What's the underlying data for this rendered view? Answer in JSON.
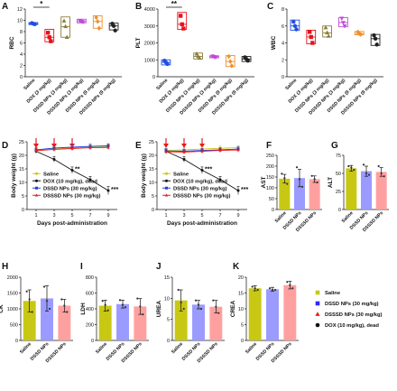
{
  "chart_data": [
    {
      "id": "A",
      "type": "box",
      "panel_label": "A",
      "ylabel": "RBC",
      "ylim": [
        0,
        12
      ],
      "yticks": [
        0,
        2,
        4,
        6,
        8,
        10,
        12
      ],
      "categories": [
        "Saline",
        "DOX (3 mg/kg)",
        "DSSD NPs (3 mg/kg)",
        "DSSSD NPs (3 mg/kg)",
        "DSSD NPs (9 mg/kg)",
        "DSSSD NPs (9 mg/kg)"
      ],
      "colors": [
        "#1f4fe0",
        "#e8111a",
        "#8b7d3a",
        "#c047d8",
        "#f0902a",
        "#222222"
      ],
      "markers": [
        "circle",
        "square",
        "triangle",
        "triangle-down",
        "diamond",
        "circle"
      ],
      "points": [
        [
          9.5,
          9.4,
          9.3
        ],
        [
          7.8,
          7.0,
          6.3
        ],
        [
          9.9,
          8.9,
          7.0
        ],
        [
          9.9,
          9.8,
          9.7
        ],
        [
          10.5,
          9.8,
          8.6
        ],
        [
          9.4,
          9.0,
          8.2
        ]
      ],
      "boxes": [
        [
          9.25,
          9.6
        ],
        [
          6.2,
          8.4
        ],
        [
          7.0,
          10.6
        ],
        [
          9.55,
          10.2
        ],
        [
          8.6,
          10.8
        ],
        [
          8.3,
          9.5
        ]
      ],
      "medians": [
        9.4,
        7.0,
        8.9,
        9.8,
        9.8,
        9.0
      ],
      "significance": [
        {
          "from": 0,
          "to": 1,
          "label": "*"
        }
      ]
    },
    {
      "id": "B",
      "type": "box",
      "panel_label": "B",
      "ylabel": "PLT",
      "ylim": [
        0,
        4000
      ],
      "yticks": [
        0,
        1000,
        2000,
        3000,
        4000
      ],
      "categories": [
        "Saline",
        "DOX (3 mg/kg)",
        "DSSD NPs (3 mg/kg)",
        "DSSSD NPs (3 mg/kg)",
        "DSSD NPs (9 mg/kg)",
        "DSSSD NPs (9 mg/kg)"
      ],
      "colors": [
        "#1f4fe0",
        "#e8111a",
        "#8b7d3a",
        "#c047d8",
        "#f0902a",
        "#222222"
      ],
      "markers": [
        "circle",
        "square",
        "triangle",
        "triangle-down",
        "diamond",
        "circle"
      ],
      "points": [
        [
          950,
          850,
          750
        ],
        [
          3600,
          3100,
          2850
        ],
        [
          1350,
          1200,
          1100
        ],
        [
          1220,
          1180,
          1150
        ],
        [
          1200,
          900,
          650
        ],
        [
          1150,
          1050,
          950
        ]
      ],
      "boxes": [
        [
          700,
          1000
        ],
        [
          2800,
          3800
        ],
        [
          1050,
          1400
        ],
        [
          1120,
          1240
        ],
        [
          600,
          1250
        ],
        [
          900,
          1200
        ]
      ],
      "medians": [
        850,
        3100,
        1200,
        1180,
        900,
        1050
      ],
      "significance": [
        {
          "from": 0,
          "to": 1,
          "label": "**"
        }
      ]
    },
    {
      "id": "C",
      "type": "box",
      "panel_label": "C",
      "ylabel": "WBC",
      "ylim": [
        0,
        8
      ],
      "yticks": [
        0,
        2,
        4,
        6,
        8
      ],
      "categories": [
        "Saline",
        "DOX (3 mg/kg)",
        "DSSD NPs (3 mg/kg)",
        "DSSSD NPs (3 mg/kg)",
        "DSSD NPs (9 mg/kg)",
        "DSSSD NPs (9 mg/kg)"
      ],
      "colors": [
        "#1f4fe0",
        "#e8111a",
        "#8b7d3a",
        "#c047d8",
        "#f0902a",
        "#222222"
      ],
      "markers": [
        "circle",
        "square",
        "triangle",
        "triangle-down",
        "diamond",
        "circle"
      ],
      "points": [
        [
          6.5,
          6.0,
          5.6
        ],
        [
          5.3,
          4.7,
          4.0
        ],
        [
          5.8,
          5.2,
          4.8
        ],
        [
          6.9,
          6.4,
          6.0
        ],
        [
          5.3,
          5.1,
          5.0
        ],
        [
          4.9,
          4.5,
          3.8
        ]
      ],
      "boxes": [
        [
          5.5,
          6.7
        ],
        [
          3.9,
          5.5
        ],
        [
          4.7,
          6.0
        ],
        [
          5.9,
          7.0
        ],
        [
          4.95,
          5.35
        ],
        [
          3.7,
          5.0
        ]
      ],
      "medians": [
        6.0,
        4.7,
        5.2,
        6.4,
        5.1,
        4.5
      ],
      "significance": []
    },
    {
      "id": "D",
      "type": "line",
      "panel_label": "D",
      "ylabel": "Body weight (g)",
      "xlabel": "Days post-administration",
      "xlim": [
        0,
        10
      ],
      "ylim": [
        0,
        25
      ],
      "xticks": [
        1,
        3,
        5,
        7,
        9
      ],
      "yticks": [
        0,
        5,
        10,
        15,
        20,
        25
      ],
      "arrow_days": [
        1,
        3,
        5
      ],
      "series": [
        {
          "name": "Saline",
          "color": "#c8c814",
          "marker": "circle",
          "x": [
            1,
            3,
            5,
            7,
            9
          ],
          "y": [
            21.8,
            22.5,
            22.8,
            23.0,
            23.2
          ],
          "err": [
            0.8,
            0.8,
            0.8,
            0.8,
            0.8
          ]
        },
        {
          "name": "DOX (10 mg/kg), dead",
          "color": "#111111",
          "marker": "circle",
          "x": [
            1,
            3,
            5,
            7,
            9
          ],
          "y": [
            21.5,
            18.5,
            14.5,
            11.0,
            7.0
          ],
          "err": [
            0.8,
            1.0,
            1.2,
            1.2,
            1.5
          ]
        },
        {
          "name": "DSSD NPs (30 mg/kg)",
          "color": "#1f3fe0",
          "marker": "square",
          "x": [
            1,
            3,
            5,
            7,
            9
          ],
          "y": [
            22.0,
            22.7,
            23.0,
            23.3,
            23.5
          ],
          "err": [
            0.8,
            0.8,
            0.8,
            0.8,
            0.8
          ]
        },
        {
          "name": "DSSSD NPs (30 mg/kg)",
          "color": "#e81a1a",
          "marker": "triangle",
          "x": [
            1,
            3,
            5,
            7,
            9
          ],
          "y": [
            21.7,
            22.2,
            22.5,
            22.8,
            22.9
          ],
          "err": [
            0.8,
            0.8,
            0.8,
            0.8,
            0.8
          ]
        }
      ],
      "annotations": [
        {
          "x": 5,
          "y": 14.5,
          "label": "**"
        },
        {
          "x": 9,
          "y": 7.0,
          "label": "***"
        }
      ]
    },
    {
      "id": "E",
      "type": "line",
      "panel_label": "E",
      "ylabel": "Body weight (g)",
      "xlabel": "Days post-administration",
      "xlim": [
        0,
        10
      ],
      "ylim": [
        0,
        25
      ],
      "xticks": [
        1,
        3,
        5,
        7,
        9
      ],
      "yticks": [
        0,
        5,
        10,
        15,
        20,
        25
      ],
      "arrow_days": [
        1,
        3,
        5
      ],
      "series": [
        {
          "name": "Saline",
          "color": "#c8c814",
          "marker": "circle",
          "x": [
            1,
            3,
            5,
            7,
            9
          ],
          "y": [
            21.8,
            22.0,
            22.3,
            22.6,
            22.8
          ],
          "err": [
            0.8,
            0.8,
            0.8,
            0.8,
            0.8
          ]
        },
        {
          "name": "DOX (10 mg/kg), dead",
          "color": "#111111",
          "marker": "circle",
          "x": [
            1,
            3,
            5,
            7,
            9
          ],
          "y": [
            21.5,
            18.5,
            14.5,
            11.0,
            7.0
          ],
          "err": [
            0.8,
            1.0,
            1.2,
            1.2,
            1.5
          ]
        },
        {
          "name": "DSSD NPs (30 mg/kg)",
          "color": "#1f3fe0",
          "marker": "square",
          "x": [
            1,
            3,
            5,
            7,
            9
          ],
          "y": [
            21.6,
            21.5,
            21.8,
            22.0,
            22.3
          ],
          "err": [
            0.8,
            0.8,
            0.8,
            0.8,
            0.8
          ]
        },
        {
          "name": "DSSSD NPs (30 mg/kg)",
          "color": "#e81a1a",
          "marker": "triangle",
          "x": [
            1,
            3,
            5,
            7,
            9
          ],
          "y": [
            21.3,
            21.2,
            21.5,
            21.8,
            22.0
          ],
          "err": [
            0.8,
            0.8,
            0.8,
            0.8,
            0.8
          ]
        }
      ],
      "annotations": [
        {
          "x": 5,
          "y": 14.5,
          "label": "***"
        },
        {
          "x": 9,
          "y": 7.0,
          "label": "***"
        }
      ]
    },
    {
      "id": "F",
      "type": "bar",
      "panel_label": "F",
      "ylabel": "AST",
      "ylim": [
        0,
        250
      ],
      "yticks": [
        0,
        50,
        100,
        150,
        200,
        250
      ],
      "categories": [
        "Saline",
        "DSSD NPs",
        "DSSSD NPs"
      ],
      "values": [
        142,
        145,
        140
      ],
      "err": [
        20,
        40,
        15
      ],
      "points": [
        [
          165,
          145,
          118
        ],
        [
          195,
          140,
          105
        ],
        [
          155,
          140,
          125
        ]
      ],
      "colors": [
        "#c8c814",
        "#9a9aff",
        "#ffa0a0"
      ]
    },
    {
      "id": "G",
      "type": "bar",
      "panel_label": "G",
      "ylabel": "ALT",
      "ylim": [
        0,
        75
      ],
      "yticks": [
        0,
        25,
        50,
        75
      ],
      "categories": [
        "Saline",
        "DSSD NPs",
        "DSSSD NPs"
      ],
      "values": [
        57,
        53,
        52
      ],
      "err": [
        4,
        7,
        6
      ],
      "points": [
        [
          60,
          58,
          55
        ],
        [
          62,
          50,
          48
        ],
        [
          60,
          50,
          46
        ]
      ],
      "colors": [
        "#c8c814",
        "#9a9aff",
        "#ffa0a0"
      ]
    },
    {
      "id": "H",
      "type": "bar",
      "panel_label": "H",
      "ylabel": "CK",
      "ylim": [
        0,
        2000
      ],
      "yticks": [
        0,
        500,
        1000,
        1500,
        2000
      ],
      "categories": [
        "Saline",
        "DSSD NPs",
        "DSSSD NPs"
      ],
      "values": [
        1250,
        1330,
        1100
      ],
      "err": [
        350,
        400,
        200
      ],
      "points": [
        [
          1550,
          1300,
          900
        ],
        [
          1700,
          1250,
          1000
        ],
        [
          1300,
          1100,
          900
        ]
      ],
      "colors": [
        "#c8c814",
        "#9a9aff",
        "#ffa0a0"
      ]
    },
    {
      "id": "I",
      "type": "bar",
      "panel_label": "I",
      "ylabel": "LDH",
      "ylim": [
        0,
        800
      ],
      "yticks": [
        0,
        200,
        400,
        600,
        800
      ],
      "categories": [
        "Saline",
        "DSSD NPs",
        "DSSSD NPs"
      ],
      "values": [
        440,
        460,
        430
      ],
      "err": [
        70,
        50,
        100
      ],
      "points": [
        [
          500,
          450,
          380
        ],
        [
          510,
          450,
          420
        ],
        [
          530,
          430,
          330
        ]
      ],
      "colors": [
        "#c8c814",
        "#9a9aff",
        "#ffa0a0"
      ]
    },
    {
      "id": "J",
      "type": "bar",
      "panel_label": "J",
      "ylabel": "UREA",
      "ylim": [
        0,
        15
      ],
      "yticks": [
        0,
        5,
        10,
        15
      ],
      "categories": [
        "Saline",
        "DSSD NPs",
        "DSSSD NPs"
      ],
      "values": [
        9.5,
        8.5,
        8.0
      ],
      "err": [
        2.5,
        1.0,
        1.5
      ],
      "points": [
        [
          12,
          9,
          7.5
        ],
        [
          9.5,
          8.5,
          7.5
        ],
        [
          9.5,
          8,
          6.5
        ]
      ],
      "colors": [
        "#c8c814",
        "#9a9aff",
        "#ffa0a0"
      ]
    },
    {
      "id": "K",
      "type": "bar",
      "panel_label": "K",
      "ylabel": "CREA",
      "ylim": [
        0,
        20
      ],
      "yticks": [
        0,
        5,
        10,
        15,
        20
      ],
      "categories": [
        "Saline",
        "DSSD NPs",
        "DSSSD NPs"
      ],
      "values": [
        16.5,
        16.2,
        17.5
      ],
      "err": [
        0.8,
        0.6,
        1.2
      ],
      "points": [
        [
          17,
          16.5,
          16
        ],
        [
          16.5,
          16,
          16
        ],
        [
          18.5,
          17.5,
          16.5
        ]
      ],
      "colors": [
        "#c8c814",
        "#9a9aff",
        "#ffa0a0"
      ]
    }
  ],
  "legend_K": [
    {
      "name": "Saline",
      "color": "#c8c814",
      "marker": "square"
    },
    {
      "name": "DSSD NPs (30 mg/kg)",
      "color": "#2a2aff",
      "marker": "square"
    },
    {
      "name": "DSSSD NPs (30 mg/kg)",
      "color": "#e81a1a",
      "marker": "triangle"
    },
    {
      "name": "DOX (10 mg/kg), dead",
      "color": "#111111",
      "marker": "circle"
    }
  ]
}
